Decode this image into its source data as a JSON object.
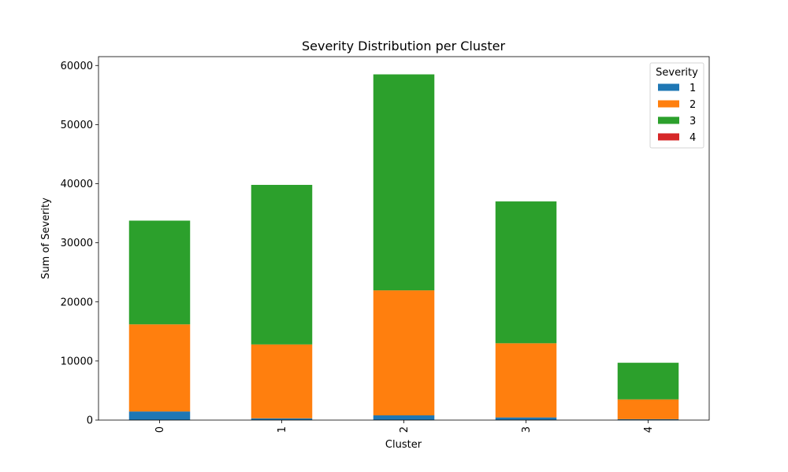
{
  "chart_data": {
    "type": "bar",
    "stacked": true,
    "title": "Severity Distribution per Cluster",
    "xlabel": "Cluster",
    "ylabel": "Sum of Severity",
    "categories": [
      "0",
      "1",
      "2",
      "3",
      "4"
    ],
    "ylim": [
      0,
      61500
    ],
    "yticks": [
      0,
      10000,
      20000,
      30000,
      40000,
      50000,
      60000
    ],
    "ytick_labels": [
      "0",
      "10000",
      "20000",
      "30000",
      "40000",
      "50000",
      "60000"
    ],
    "grid": false,
    "legend": {
      "title": "Severity",
      "placement": "top-right"
    },
    "series": [
      {
        "name": "1",
        "color": "#1f77b4",
        "values": [
          1450,
          300,
          800,
          450,
          150
        ]
      },
      {
        "name": "2",
        "color": "#ff7f0e",
        "values": [
          14750,
          12500,
          21150,
          12550,
          3350
        ]
      },
      {
        "name": "3",
        "color": "#2ca02c",
        "values": [
          17550,
          27000,
          36550,
          24000,
          6200
        ]
      },
      {
        "name": "4",
        "color": "#d62728",
        "values": [
          0,
          0,
          0,
          0,
          0
        ]
      }
    ]
  }
}
